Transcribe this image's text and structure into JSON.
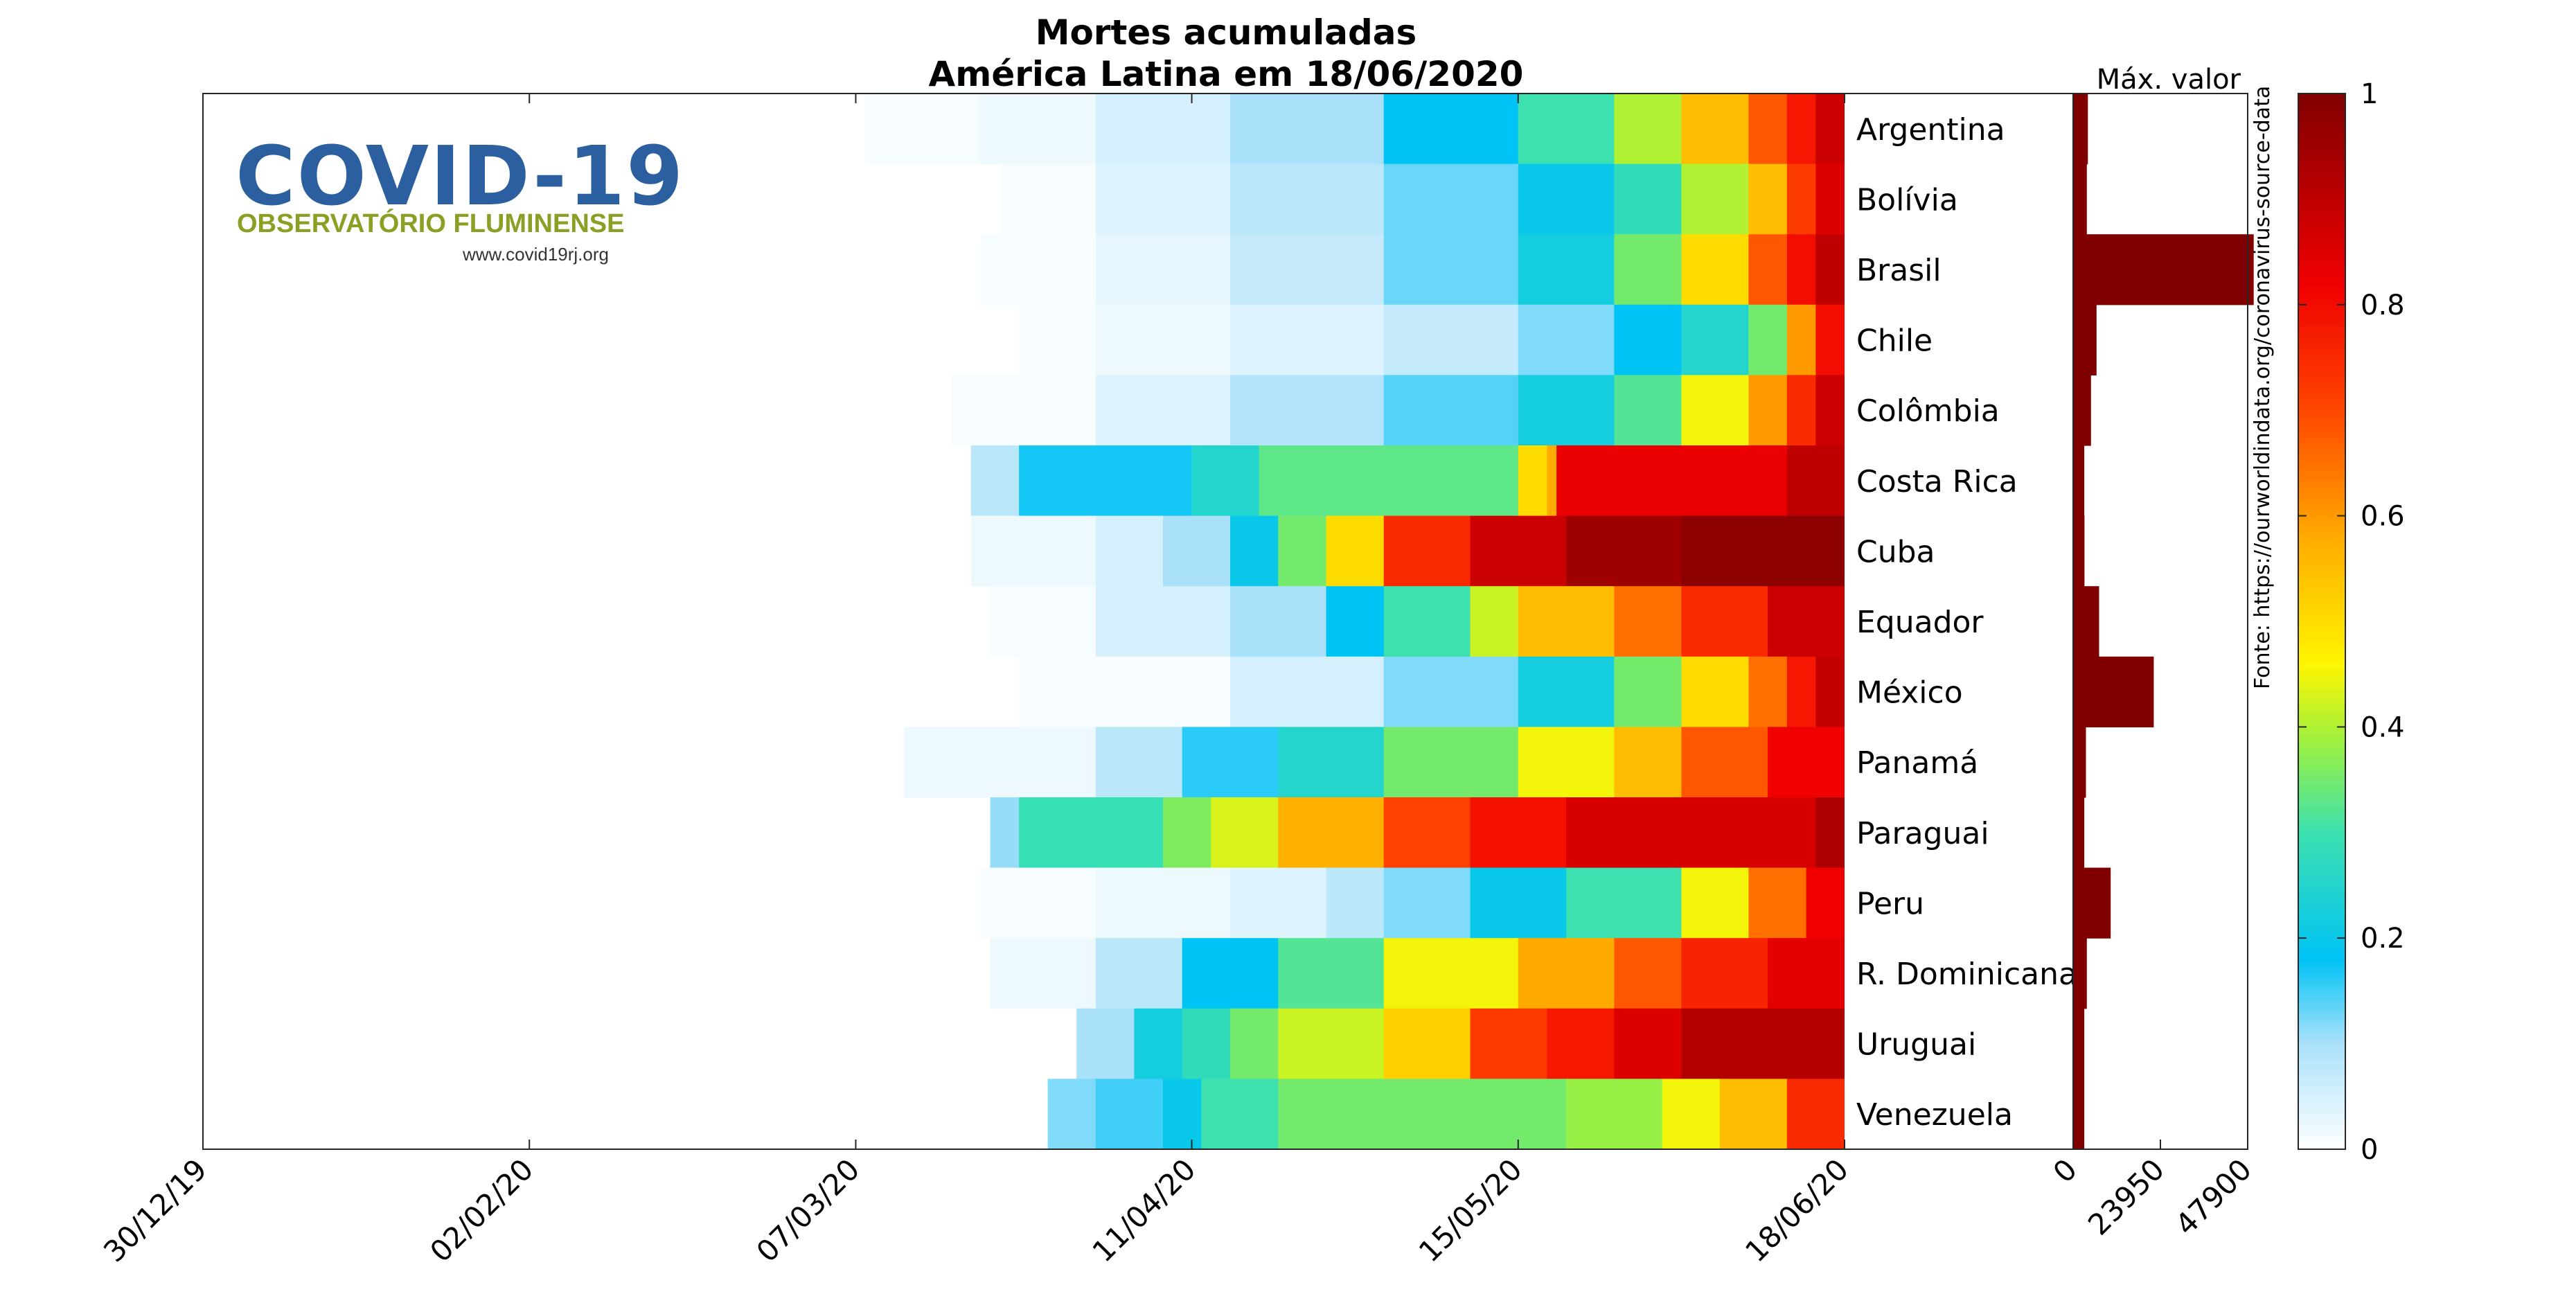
{
  "title": {
    "line1": "Mortes acumuladas",
    "line2": "América Latina em 18/06/2020"
  },
  "logo": {
    "word": "COVID-19",
    "subtitle": "OBSERVATÓRIO FLUMINENSE",
    "url": "www.covid19rj.org"
  },
  "source_note": "Fonte: https://ourworldindata.org/coronavirus-source-data",
  "max_label": "Máx. valor",
  "colors": {
    "frame": "#262626",
    "bar": "#800000"
  },
  "chart_data": [
    {
      "type": "heatmap",
      "title": "Mortes acumuladas América Latina em 18/06/2020",
      "colormap": "jet-like: white → light blue → cyan → green → yellow → orange → red → dark red",
      "value_meaning": "accumulated deaths normalized by each country's maximum (0–1)",
      "x_ticks": [
        "30/12/19",
        "02/02/20",
        "07/03/20",
        "11/04/20",
        "15/05/20",
        "18/06/20"
      ],
      "x_range": [
        "30/12/19",
        "18/06/20"
      ],
      "rows": [
        "Argentina",
        "Bolívia",
        "Brasil",
        "Chile",
        "Colômbia",
        "Costa Rica",
        "Cuba",
        "Equador",
        "México",
        "Panamá",
        "Paraguai",
        "Peru",
        "R. Dominicana",
        "Uruguai",
        "Venezuela"
      ],
      "series": [
        {
          "name": "Argentina",
          "x": [
            "08/03/20",
            "20/03/20",
            "01/04/20",
            "15/04/20",
            "01/05/20",
            "15/05/20",
            "25/05/20",
            "01/06/20",
            "08/06/20",
            "12/06/20",
            "15/06/20",
            "18/06/20"
          ],
          "values": [
            0.01,
            0.02,
            0.05,
            0.1,
            0.18,
            0.3,
            0.4,
            0.55,
            0.68,
            0.78,
            0.88,
            1.0
          ]
        },
        {
          "name": "Bolívia",
          "x": [
            "22/03/20",
            "01/04/20",
            "15/04/20",
            "01/05/20",
            "15/05/20",
            "25/05/20",
            "01/06/20",
            "08/06/20",
            "12/06/20",
            "15/06/20",
            "18/06/20"
          ],
          "values": [
            0.01,
            0.04,
            0.08,
            0.13,
            0.2,
            0.28,
            0.4,
            0.55,
            0.72,
            0.85,
            1.0
          ]
        },
        {
          "name": "Brasil",
          "x": [
            "20/03/20",
            "01/04/20",
            "15/04/20",
            "01/05/20",
            "15/05/20",
            "25/05/20",
            "01/06/20",
            "08/06/20",
            "12/06/20",
            "15/06/20",
            "18/06/20"
          ],
          "values": [
            0.01,
            0.03,
            0.07,
            0.13,
            0.22,
            0.35,
            0.5,
            0.68,
            0.8,
            0.9,
            1.0
          ]
        },
        {
          "name": "Chile",
          "x": [
            "24/03/20",
            "01/04/20",
            "15/04/20",
            "01/05/20",
            "15/05/20",
            "25/05/20",
            "01/06/20",
            "08/06/20",
            "12/06/20",
            "15/06/20",
            "18/06/20"
          ],
          "values": [
            0.01,
            0.02,
            0.04,
            0.07,
            0.12,
            0.18,
            0.25,
            0.35,
            0.6,
            0.8,
            1.0
          ]
        },
        {
          "name": "Colômbia",
          "x": [
            "17/03/20",
            "01/04/20",
            "15/04/20",
            "01/05/20",
            "15/05/20",
            "25/05/20",
            "01/06/20",
            "08/06/20",
            "12/06/20",
            "15/06/20",
            "18/06/20"
          ],
          "values": [
            0.01,
            0.04,
            0.09,
            0.14,
            0.22,
            0.32,
            0.45,
            0.6,
            0.75,
            0.88,
            1.0
          ]
        },
        {
          "name": "Costa Rica",
          "x": [
            "19/03/20",
            "24/03/20",
            "11/04/20",
            "18/04/20",
            "15/05/20",
            "18/05/20",
            "19/05/20",
            "12/06/20",
            "18/06/20"
          ],
          "values": [
            0.08,
            0.17,
            0.25,
            0.33,
            0.5,
            0.58,
            0.83,
            0.9,
            1.0
          ]
        },
        {
          "name": "Cuba",
          "x": [
            "19/03/20",
            "01/04/20",
            "08/04/20",
            "15/04/20",
            "20/04/20",
            "25/04/20",
            "01/05/20",
            "10/05/20",
            "20/05/20",
            "01/06/20",
            "18/06/20"
          ],
          "values": [
            0.02,
            0.05,
            0.1,
            0.2,
            0.35,
            0.5,
            0.75,
            0.88,
            0.95,
            0.98,
            1.0
          ]
        },
        {
          "name": "Equador",
          "x": [
            "21/03/20",
            "01/04/20",
            "15/04/20",
            "25/04/20",
            "01/05/20",
            "10/05/20",
            "15/05/20",
            "25/05/20",
            "01/06/20",
            "10/06/20",
            "18/06/20"
          ],
          "values": [
            0.01,
            0.05,
            0.1,
            0.18,
            0.3,
            0.42,
            0.55,
            0.65,
            0.75,
            0.88,
            1.0
          ]
        },
        {
          "name": "México",
          "x": [
            "24/03/20",
            "15/04/20",
            "01/05/20",
            "15/05/20",
            "25/05/20",
            "01/06/20",
            "08/06/20",
            "12/06/20",
            "15/06/20",
            "18/06/20"
          ],
          "values": [
            0.01,
            0.05,
            0.12,
            0.22,
            0.35,
            0.5,
            0.65,
            0.78,
            0.89,
            1.0
          ]
        },
        {
          "name": "Panamá",
          "x": [
            "12/03/20",
            "01/04/20",
            "10/04/20",
            "20/04/20",
            "01/05/20",
            "15/05/20",
            "25/05/20",
            "01/06/20",
            "10/06/20",
            "18/06/20"
          ],
          "values": [
            0.02,
            0.08,
            0.16,
            0.25,
            0.35,
            0.45,
            0.55,
            0.68,
            0.82,
            1.0
          ]
        },
        {
          "name": "Paraguai",
          "x": [
            "21/03/20",
            "24/03/20",
            "08/04/20",
            "13/04/20",
            "20/04/20",
            "01/05/20",
            "10/05/20",
            "20/05/20",
            "15/06/20",
            "18/06/20"
          ],
          "values": [
            0.11,
            0.29,
            0.36,
            0.43,
            0.57,
            0.71,
            0.79,
            0.86,
            0.93,
            1.0
          ]
        },
        {
          "name": "Peru",
          "x": [
            "20/03/20",
            "01/04/20",
            "15/04/20",
            "25/04/20",
            "01/05/20",
            "10/05/20",
            "20/05/20",
            "01/06/20",
            "08/06/20",
            "14/06/20",
            "18/06/20"
          ],
          "values": [
            0.01,
            0.02,
            0.04,
            0.08,
            0.12,
            0.2,
            0.3,
            0.45,
            0.65,
            0.82,
            1.0
          ]
        },
        {
          "name": "R. Dominicana",
          "x": [
            "21/03/20",
            "01/04/20",
            "10/04/20",
            "20/04/20",
            "01/05/20",
            "15/05/20",
            "25/05/20",
            "01/06/20",
            "10/06/20",
            "18/06/20"
          ],
          "values": [
            0.02,
            0.08,
            0.18,
            0.32,
            0.45,
            0.58,
            0.68,
            0.76,
            0.84,
            1.0
          ]
        },
        {
          "name": "Uruguai",
          "x": [
            "30/03/20",
            "05/04/20",
            "10/04/20",
            "15/04/20",
            "20/04/20",
            "01/05/20",
            "10/05/20",
            "18/05/20",
            "25/05/20",
            "01/06/20",
            "18/06/20"
          ],
          "values": [
            0.1,
            0.22,
            0.28,
            0.35,
            0.42,
            0.52,
            0.72,
            0.78,
            0.85,
            0.92,
            1.0
          ]
        },
        {
          "name": "Venezuela",
          "x": [
            "27/03/20",
            "01/04/20",
            "08/04/20",
            "12/04/20",
            "20/04/20",
            "20/05/20",
            "30/05/20",
            "05/06/20",
            "12/06/20",
            "18/06/20"
          ],
          "values": [
            0.12,
            0.15,
            0.2,
            0.3,
            0.35,
            0.38,
            0.45,
            0.55,
            0.75,
            1.0
          ]
        }
      ]
    },
    {
      "type": "bar",
      "orientation": "horizontal",
      "title": "Máx. valor",
      "categories": [
        "Argentina",
        "Bolívia",
        "Brasil",
        "Chile",
        "Colômbia",
        "Costa Rica",
        "Cuba",
        "Equador",
        "México",
        "Panamá",
        "Paraguai",
        "Peru",
        "R. Dominicana",
        "Uruguai",
        "Venezuela"
      ],
      "values": [
        1016,
        715,
        46510,
        3383,
        1864,
        12,
        85,
        4087,
        19080,
        470,
        13,
        7257,
        718,
        25,
        22
      ],
      "xlim": [
        0,
        47900
      ],
      "x_ticks": [
        "0",
        "23950",
        "47900"
      ]
    },
    {
      "type": "colorbar",
      "range": [
        0,
        1
      ],
      "ticks": [
        "0",
        "0.2",
        "0.4",
        "0.6",
        "0.8",
        "1"
      ]
    }
  ]
}
